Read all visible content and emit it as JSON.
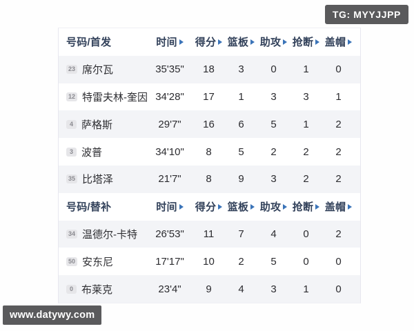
{
  "watermarks": {
    "top_right": "TG: MYYJJPP",
    "bottom_left": "www.datywy.com"
  },
  "colors": {
    "header_text": "#32415a",
    "sort_arrow": "#3b74b8",
    "row_stripe": "#f3f4f7",
    "badge_bg": "#e6e6e9",
    "badge_text": "#8a8a90",
    "watermark_bg": "#5a5a5c",
    "data_text": "#2b2b2f"
  },
  "table": {
    "stat_column_keys": [
      "time",
      "points",
      "rebounds",
      "assists",
      "steals",
      "blocks"
    ],
    "sections": [
      {
        "group_header": "号码/首发",
        "stat_headers": [
          "时间",
          "得分",
          "篮板",
          "助攻",
          "抢断",
          "盖帽"
        ],
        "rows": [
          {
            "num": "23",
            "name": "席尔瓦",
            "time": "35'35\"",
            "stats": [
              "18",
              "3",
              "0",
              "1",
              "0"
            ]
          },
          {
            "num": "12",
            "name": "特雷夫林-奎因",
            "time": "34'28\"",
            "stats": [
              "17",
              "1",
              "3",
              "3",
              "1"
            ]
          },
          {
            "num": "4",
            "name": "萨格斯",
            "time": "29'7\"",
            "stats": [
              "16",
              "6",
              "5",
              "1",
              "2"
            ]
          },
          {
            "num": "3",
            "name": "波普",
            "time": "34'10\"",
            "stats": [
              "8",
              "5",
              "2",
              "2",
              "2"
            ]
          },
          {
            "num": "35",
            "name": "比塔泽",
            "time": "21'7\"",
            "stats": [
              "8",
              "9",
              "3",
              "2",
              "2"
            ]
          }
        ]
      },
      {
        "group_header": "号码/替补",
        "stat_headers": [
          "时间",
          "得分",
          "篮板",
          "助攻",
          "抢断",
          "盖帽"
        ],
        "rows": [
          {
            "num": "34",
            "name": "温德尔-卡特",
            "time": "26'53\"",
            "stats": [
              "11",
              "7",
              "4",
              "0",
              "2"
            ]
          },
          {
            "num": "50",
            "name": "安东尼",
            "time": "17'17\"",
            "stats": [
              "10",
              "2",
              "5",
              "0",
              "0"
            ]
          },
          {
            "num": "0",
            "name": "布莱克",
            "time": "23'4\"",
            "stats": [
              "9",
              "4",
              "3",
              "1",
              "0"
            ]
          }
        ]
      }
    ]
  }
}
